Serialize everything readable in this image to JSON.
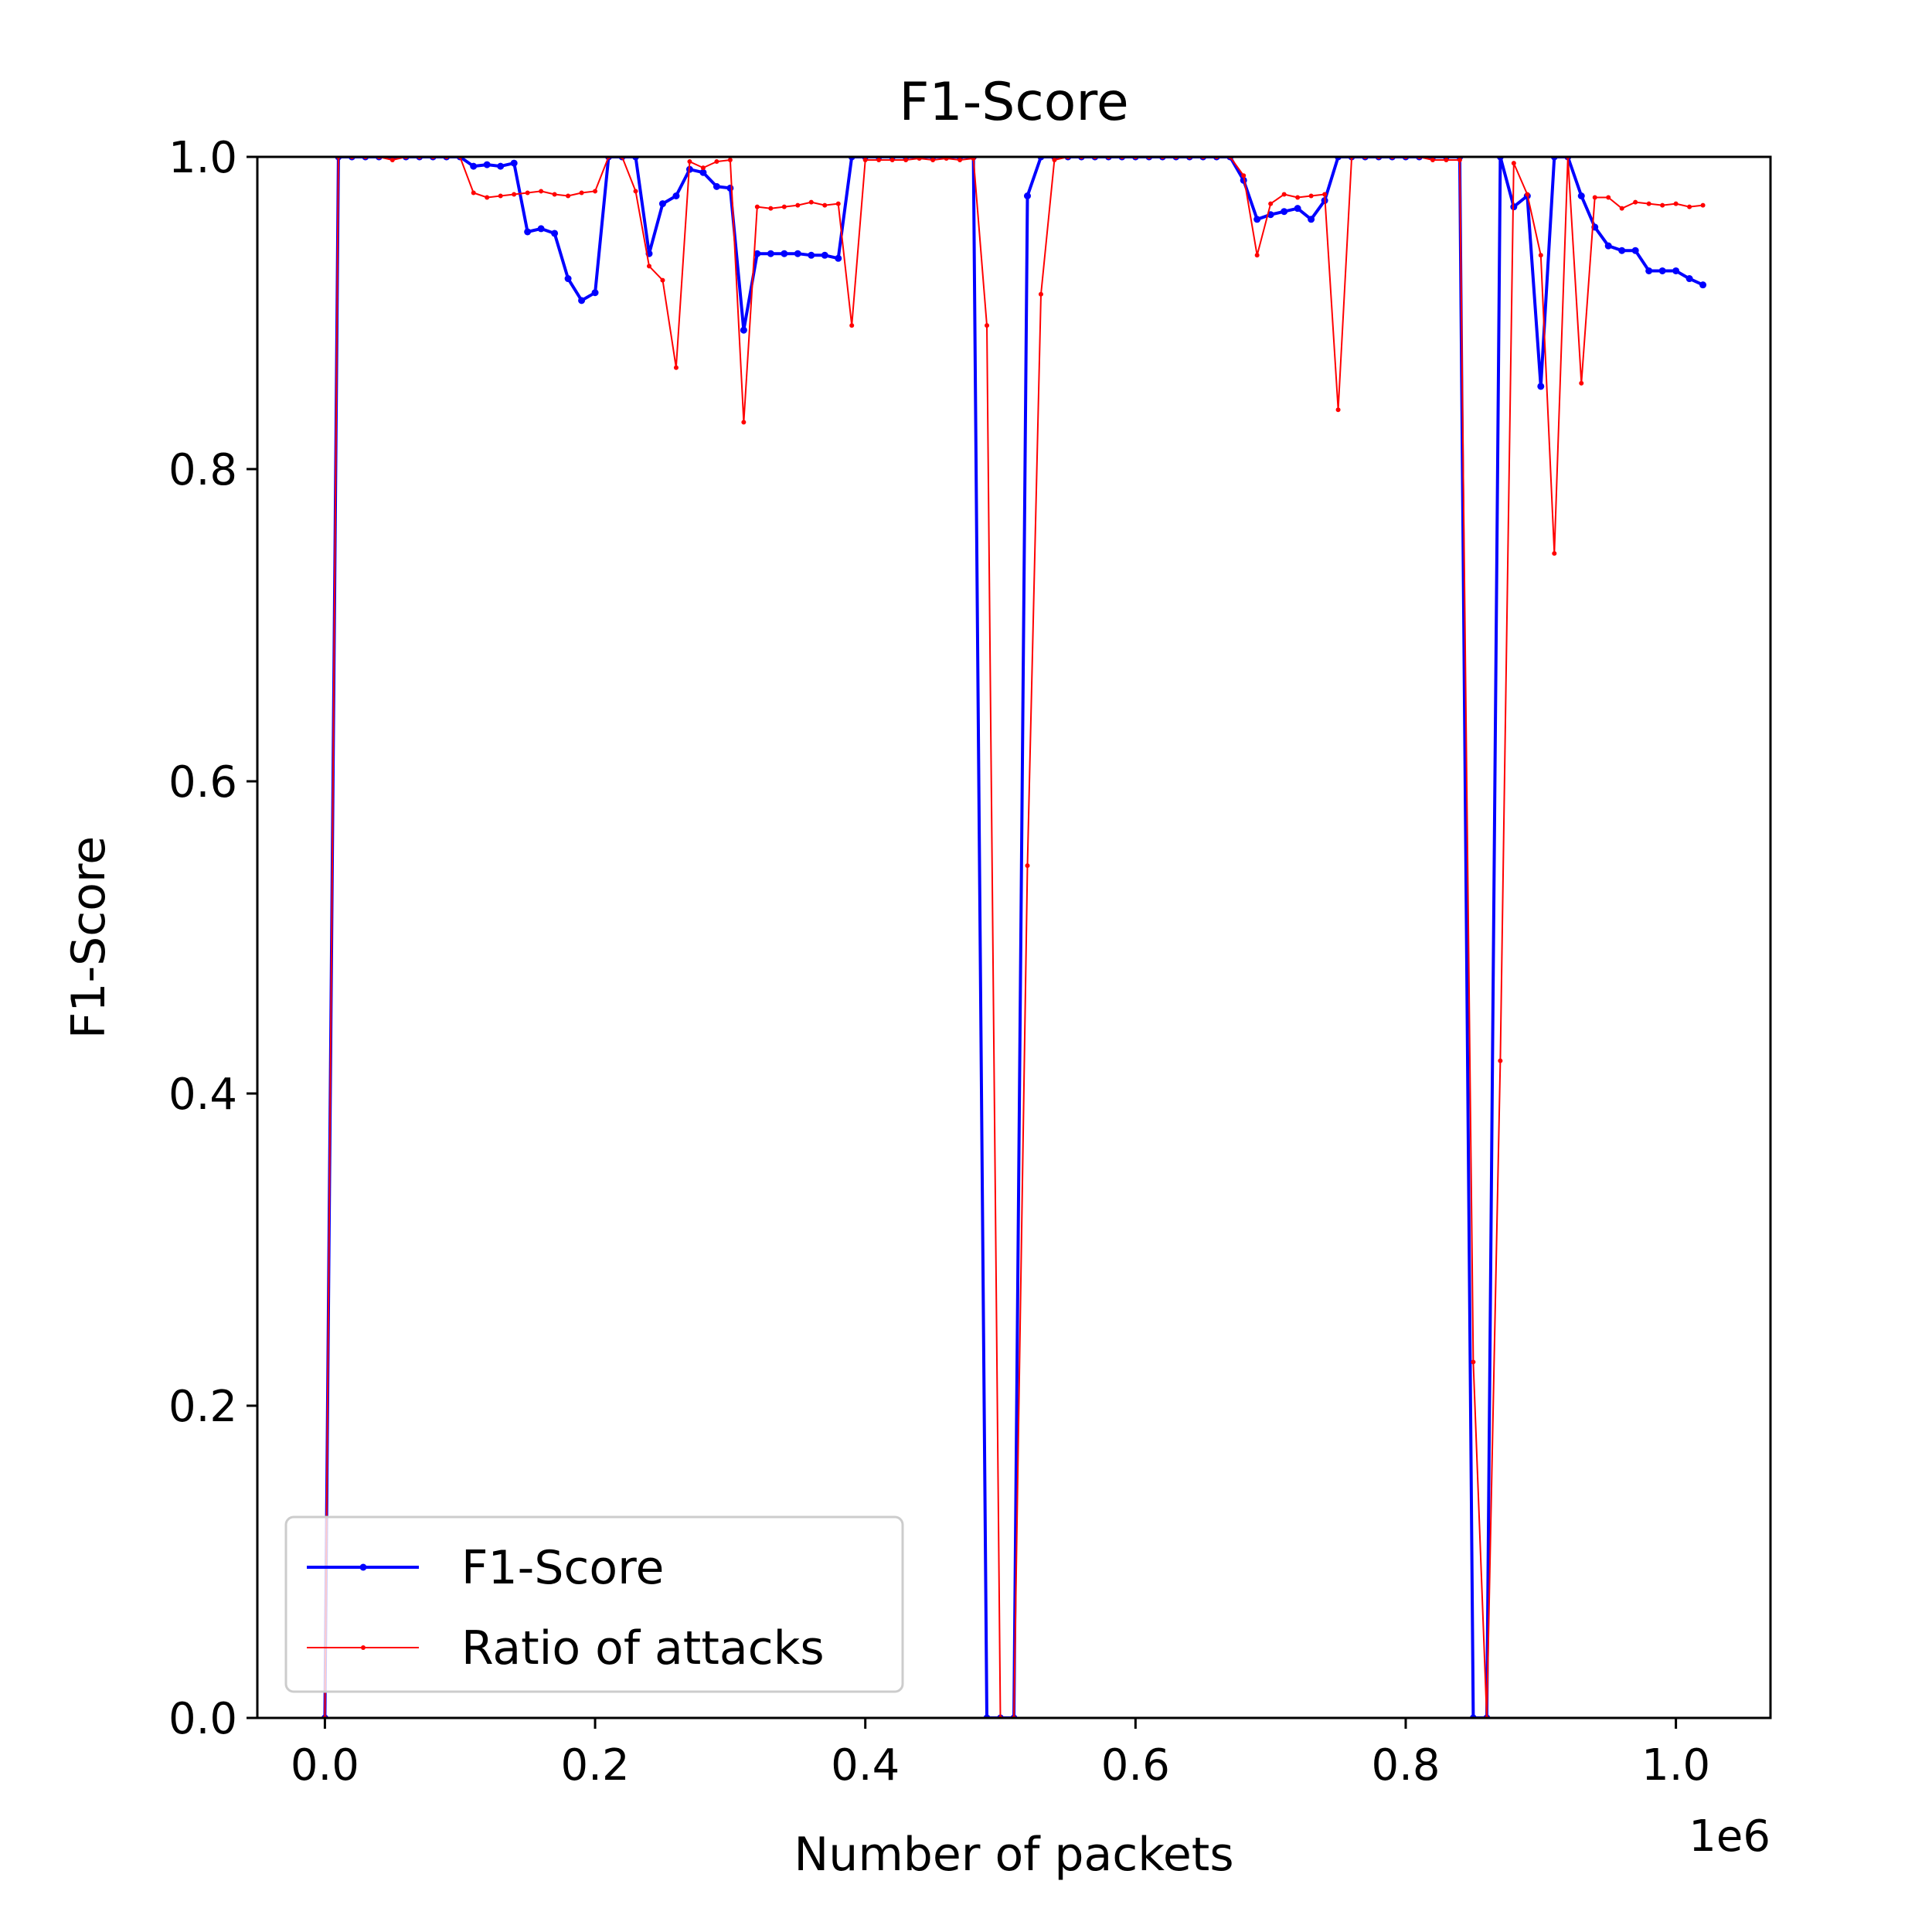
{
  "chart_data": {
    "type": "line",
    "title": "F1-Score",
    "xlabel": "Number of packets",
    "ylabel": "F1-Score",
    "x_offset_label": "1e6",
    "xlim": [
      -50000,
      1070000
    ],
    "ylim": [
      0,
      1
    ],
    "x_ticks": [
      0,
      200000,
      400000,
      600000,
      800000,
      1000000
    ],
    "x_tick_labels": [
      "0.0",
      "0.2",
      "0.4",
      "0.6",
      "0.8",
      "1.0"
    ],
    "y_ticks": [
      0,
      0.2,
      0.4,
      0.6,
      0.8,
      1.0
    ],
    "y_tick_labels": [
      "0.0",
      "0.2",
      "0.4",
      "0.6",
      "0.8",
      "1.0"
    ],
    "grid": false,
    "legend_position": "lower-left",
    "x": [
      0,
      10000,
      20000,
      30000,
      40000,
      50000,
      60000,
      70000,
      80000,
      90000,
      100000,
      110000,
      120000,
      130000,
      140000,
      150000,
      160000,
      170000,
      180000,
      190000,
      200000,
      210000,
      220000,
      230000,
      240000,
      250000,
      260000,
      270000,
      280000,
      290000,
      300000,
      310000,
      320000,
      330000,
      340000,
      350000,
      360000,
      370000,
      380000,
      390000,
      400000,
      410000,
      420000,
      430000,
      440000,
      450000,
      460000,
      470000,
      480000,
      490000,
      500000,
      510000,
      520000,
      530000,
      540000,
      550000,
      560000,
      570000,
      580000,
      590000,
      600000,
      610000,
      620000,
      630000,
      640000,
      650000,
      660000,
      670000,
      680000,
      690000,
      700000,
      710000,
      720000,
      730000,
      740000,
      750000,
      760000,
      770000,
      780000,
      790000,
      800000,
      810000,
      820000,
      830000,
      840000,
      850000,
      860000,
      870000,
      880000,
      890000,
      900000,
      910000,
      920000,
      930000,
      940000,
      950000,
      960000,
      970000,
      980000,
      990000,
      1000000,
      1010000,
      1020000
    ],
    "series": [
      {
        "name": "F1-Score",
        "color": "#0000ff",
        "line_width": 4,
        "marker_radius": 4.5,
        "values": [
          0.0,
          1.0,
          1.0,
          1.0,
          1.0,
          1.0,
          1.0,
          1.0,
          1.0,
          1.0,
          1.0,
          0.994,
          0.995,
          0.994,
          0.996,
          0.952,
          0.954,
          0.951,
          0.922,
          0.908,
          0.913,
          1.0,
          1.0,
          1.0,
          0.938,
          0.97,
          0.975,
          0.992,
          0.99,
          0.981,
          0.98,
          0.889,
          0.938,
          0.938,
          0.938,
          0.938,
          0.937,
          0.937,
          0.935,
          1.0,
          1.0,
          1.0,
          1.0,
          1.0,
          1.0,
          1.0,
          1.0,
          1.0,
          1.0,
          0.0,
          0.0,
          0.0,
          0.975,
          1.0,
          1.0,
          1.0,
          1.0,
          1.0,
          1.0,
          1.0,
          1.0,
          1.0,
          1.0,
          1.0,
          1.0,
          1.0,
          1.0,
          1.0,
          0.985,
          0.96,
          0.963,
          0.965,
          0.967,
          0.96,
          0.972,
          1.0,
          1.0,
          1.0,
          1.0,
          1.0,
          1.0,
          1.0,
          1.0,
          1.0,
          1.0,
          0.0,
          0.0,
          1.0,
          0.968,
          0.975,
          0.853,
          1.0,
          1.0,
          0.975,
          0.955,
          0.943,
          0.94,
          0.94,
          0.927,
          0.927,
          0.927,
          0.922,
          0.918
        ]
      },
      {
        "name": "Ratio of attacks",
        "color": "#ff0000",
        "line_width": 2,
        "marker_radius": 3,
        "values": [
          0.0,
          1.0,
          1.0,
          1.0,
          1.0,
          0.998,
          1.0,
          1.0,
          1.0,
          1.0,
          1.0,
          0.977,
          0.974,
          0.975,
          0.976,
          0.977,
          0.978,
          0.976,
          0.975,
          0.977,
          0.978,
          1.0,
          1.0,
          0.978,
          0.93,
          0.921,
          0.865,
          0.997,
          0.993,
          0.997,
          0.998,
          0.83,
          0.968,
          0.967,
          0.968,
          0.969,
          0.971,
          0.969,
          0.97,
          0.892,
          0.998,
          0.998,
          0.998,
          0.998,
          0.999,
          0.998,
          0.999,
          0.998,
          0.999,
          0.892,
          0.0,
          0.0,
          0.546,
          0.912,
          0.998,
          1.0,
          1.0,
          1.0,
          1.0,
          1.0,
          1.0,
          1.0,
          1.0,
          1.0,
          1.0,
          1.0,
          1.0,
          1.0,
          0.988,
          0.937,
          0.97,
          0.976,
          0.974,
          0.975,
          0.976,
          0.838,
          1.0,
          1.0,
          1.0,
          1.0,
          1.0,
          1.0,
          0.998,
          0.998,
          0.998,
          0.228,
          0.0,
          0.421,
          0.996,
          0.976,
          0.937,
          0.746,
          1.0,
          0.855,
          0.974,
          0.974,
          0.967,
          0.971,
          0.97,
          0.969,
          0.97,
          0.968,
          0.969
        ]
      }
    ]
  }
}
